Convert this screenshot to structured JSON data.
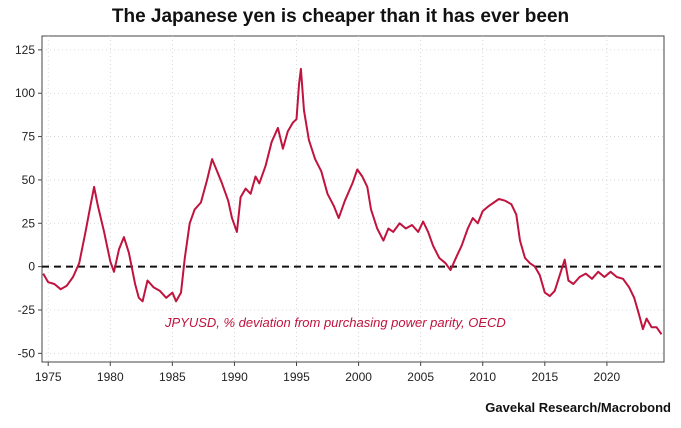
{
  "chart_data": {
    "type": "line",
    "title": "The Japanese yen is cheaper than it has ever been",
    "source": "Gavekal Research/Macrobond",
    "xlim": [
      1974.5,
      2024.6
    ],
    "ylim": [
      -55,
      133
    ],
    "x_ticks": [
      1975,
      1980,
      1985,
      1990,
      1995,
      2000,
      2005,
      2010,
      2015,
      2020
    ],
    "y_ticks": [
      125,
      100,
      75,
      50,
      25,
      0,
      -25,
      -50
    ],
    "grid": true,
    "reference_line": 0,
    "series": [
      {
        "name": "JPYUSD, % deviation from purchasing power parity, OECD",
        "color": "#c0133d",
        "points": [
          [
            1974.6,
            -4
          ],
          [
            1975.0,
            -9
          ],
          [
            1975.5,
            -10
          ],
          [
            1976.0,
            -13
          ],
          [
            1976.5,
            -11
          ],
          [
            1977.0,
            -6
          ],
          [
            1977.5,
            2
          ],
          [
            1978.0,
            20
          ],
          [
            1978.4,
            35
          ],
          [
            1978.7,
            46
          ],
          [
            1979.0,
            35
          ],
          [
            1979.5,
            20
          ],
          [
            1980.0,
            3
          ],
          [
            1980.3,
            -3
          ],
          [
            1980.7,
            10
          ],
          [
            1981.1,
            17
          ],
          [
            1981.5,
            8
          ],
          [
            1982.0,
            -10
          ],
          [
            1982.3,
            -18
          ],
          [
            1982.6,
            -20
          ],
          [
            1983.0,
            -8
          ],
          [
            1983.5,
            -12
          ],
          [
            1984.0,
            -14
          ],
          [
            1984.5,
            -18
          ],
          [
            1985.0,
            -15
          ],
          [
            1985.3,
            -20
          ],
          [
            1985.7,
            -15
          ],
          [
            1986.0,
            5
          ],
          [
            1986.4,
            25
          ],
          [
            1986.8,
            33
          ],
          [
            1987.3,
            37
          ],
          [
            1987.8,
            50
          ],
          [
            1988.2,
            62
          ],
          [
            1988.6,
            55
          ],
          [
            1989.0,
            48
          ],
          [
            1989.5,
            38
          ],
          [
            1989.8,
            28
          ],
          [
            1990.2,
            20
          ],
          [
            1990.5,
            40
          ],
          [
            1990.9,
            45
          ],
          [
            1991.3,
            42
          ],
          [
            1991.7,
            52
          ],
          [
            1992.0,
            48
          ],
          [
            1992.5,
            58
          ],
          [
            1993.0,
            72
          ],
          [
            1993.5,
            80
          ],
          [
            1993.9,
            68
          ],
          [
            1994.3,
            78
          ],
          [
            1994.7,
            83
          ],
          [
            1995.0,
            85
          ],
          [
            1995.2,
            105
          ],
          [
            1995.35,
            114
          ],
          [
            1995.6,
            90
          ],
          [
            1996.0,
            73
          ],
          [
            1996.5,
            62
          ],
          [
            1997.0,
            55
          ],
          [
            1997.5,
            42
          ],
          [
            1998.0,
            35
          ],
          [
            1998.4,
            28
          ],
          [
            1998.9,
            38
          ],
          [
            1999.5,
            48
          ],
          [
            1999.9,
            56
          ],
          [
            2000.3,
            52
          ],
          [
            2000.7,
            46
          ],
          [
            2001.0,
            33
          ],
          [
            2001.5,
            22
          ],
          [
            2002.0,
            15
          ],
          [
            2002.4,
            22
          ],
          [
            2002.8,
            20
          ],
          [
            2003.3,
            25
          ],
          [
            2003.8,
            22
          ],
          [
            2004.3,
            24
          ],
          [
            2004.8,
            20
          ],
          [
            2005.2,
            26
          ],
          [
            2005.6,
            20
          ],
          [
            2006.0,
            12
          ],
          [
            2006.5,
            5
          ],
          [
            2007.0,
            2
          ],
          [
            2007.4,
            -2
          ],
          [
            2007.9,
            6
          ],
          [
            2008.3,
            12
          ],
          [
            2008.8,
            22
          ],
          [
            2009.2,
            28
          ],
          [
            2009.6,
            25
          ],
          [
            2010.0,
            32
          ],
          [
            2010.5,
            35
          ],
          [
            2010.9,
            37
          ],
          [
            2011.3,
            39
          ],
          [
            2011.8,
            38
          ],
          [
            2012.3,
            36
          ],
          [
            2012.7,
            30
          ],
          [
            2013.0,
            15
          ],
          [
            2013.4,
            5
          ],
          [
            2013.8,
            2
          ],
          [
            2014.2,
            0
          ],
          [
            2014.6,
            -5
          ],
          [
            2015.0,
            -15
          ],
          [
            2015.4,
            -17
          ],
          [
            2015.8,
            -14
          ],
          [
            2016.2,
            -5
          ],
          [
            2016.6,
            4
          ],
          [
            2016.9,
            -8
          ],
          [
            2017.3,
            -10
          ],
          [
            2017.8,
            -6
          ],
          [
            2018.3,
            -4
          ],
          [
            2018.8,
            -7
          ],
          [
            2019.3,
            -3
          ],
          [
            2019.8,
            -6
          ],
          [
            2020.3,
            -3
          ],
          [
            2020.8,
            -6
          ],
          [
            2021.3,
            -7
          ],
          [
            2021.8,
            -12
          ],
          [
            2022.2,
            -18
          ],
          [
            2022.6,
            -28
          ],
          [
            2022.9,
            -36
          ],
          [
            2023.2,
            -30
          ],
          [
            2023.6,
            -35
          ],
          [
            2024.0,
            -35
          ],
          [
            2024.4,
            -39
          ]
        ]
      }
    ]
  }
}
